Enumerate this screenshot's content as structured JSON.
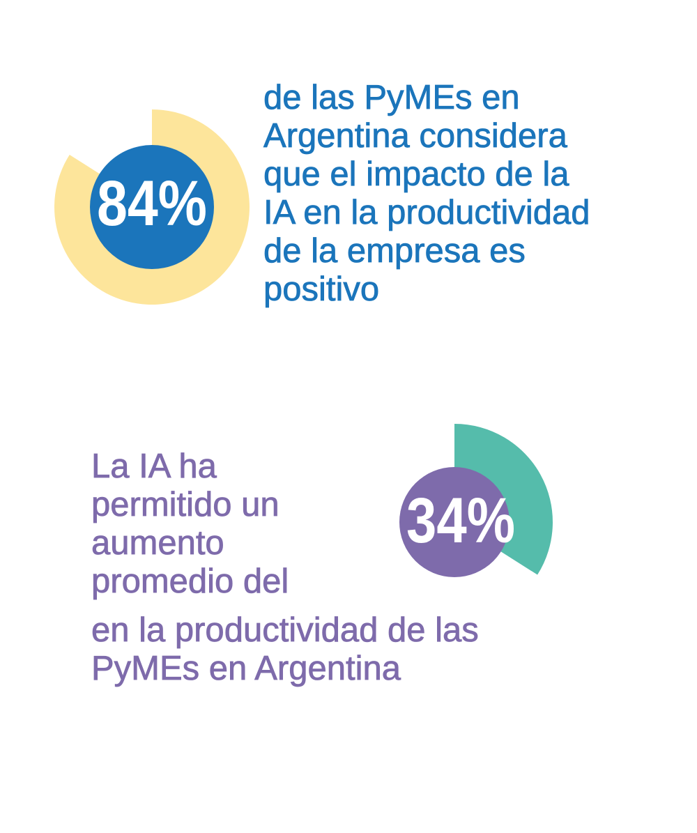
{
  "colors": {
    "blue": "#1b75bb",
    "yellow": "#fde59b",
    "purple": "#7e6bab",
    "teal": "#55bcab",
    "white": "#ffffff"
  },
  "chart_data": [
    {
      "type": "pie",
      "label": "84%",
      "value": 84,
      "unit": "%",
      "total": 100,
      "arc_color": "#fde59b",
      "center_color": "#1b75bb",
      "statement_lines": [
        "de las PyMEs en",
        "Argentina considera",
        "que el impacto de la",
        "IA en la productividad",
        "de la empresa es",
        "positivo"
      ]
    },
    {
      "type": "pie",
      "label": "34%",
      "value": 34,
      "unit": "%",
      "total": 100,
      "arc_color": "#55bcab",
      "center_color": "#7e6bab",
      "statement_before_lines": [
        "La IA ha",
        "permitido un",
        "aumento",
        "promedio del"
      ],
      "statement_after_lines": [
        "en la productividad de las",
        "PyMEs en Argentina"
      ]
    }
  ]
}
